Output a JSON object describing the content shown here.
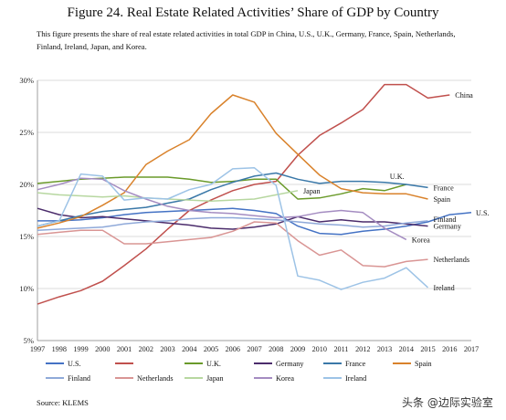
{
  "page": {
    "title": "Figure 24. Real Estate Related Activities’ Share of GDP by Country",
    "subtitle": "This figure presents the share of real estate related activities in total GDP in China, U.S., U.K., Germany, France, Spain, Netherlands, Finland, Ireland, Japan, and Korea.",
    "source": "Source: KLEMS",
    "watermark_text": "头条 @边际实验室"
  },
  "chart_data": {
    "type": "line",
    "title": "Figure 24. Real Estate Related Activities’ Share of GDP by Country",
    "xlabel": "",
    "ylabel": "",
    "x": [
      1997,
      1998,
      1999,
      2000,
      2001,
      2002,
      2003,
      2004,
      2005,
      2006,
      2007,
      2008,
      2009,
      2010,
      2011,
      2012,
      2013,
      2014,
      2015,
      2016,
      2017
    ],
    "y_ticks": [
      "5%",
      "10%",
      "15%",
      "20%",
      "25%",
      "30%"
    ],
    "ylim": [
      5,
      30
    ],
    "xlim": [
      1997,
      2017
    ],
    "grid": "horizontal",
    "legend_position": "bottom",
    "series": [
      {
        "name": "U.S.",
        "color": "#4472c4",
        "values": [
          16.5,
          16.5,
          16.6,
          16.8,
          17.1,
          17.3,
          17.4,
          17.5,
          17.6,
          17.7,
          17.5,
          17.2,
          16.0,
          15.3,
          15.2,
          15.5,
          15.7,
          16.0,
          16.4,
          17.1,
          17.3
        ]
      },
      {
        "name": "China",
        "color": "#c0504d",
        "label": "China",
        "values": [
          8.5,
          9.2,
          9.8,
          10.7,
          12.2,
          13.8,
          15.7,
          17.5,
          18.5,
          19.4,
          20.0,
          20.3,
          22.8,
          24.7,
          25.9,
          27.2,
          29.6,
          29.6,
          28.3,
          28.6,
          null
        ]
      },
      {
        "name": "U.K.",
        "color": "#6a9a2a",
        "label": "U.K.",
        "values": [
          20.1,
          20.3,
          20.5,
          20.6,
          20.7,
          20.7,
          20.7,
          20.5,
          20.2,
          20.3,
          20.5,
          20.5,
          18.6,
          18.7,
          19.1,
          19.6,
          19.4,
          20.0,
          null,
          null,
          null
        ]
      },
      {
        "name": "Germany",
        "color": "#4b2c6b",
        "label": "Germany",
        "values": [
          17.7,
          17.1,
          16.8,
          16.9,
          16.7,
          16.5,
          16.3,
          16.1,
          15.8,
          15.7,
          15.9,
          16.2,
          16.9,
          16.4,
          16.6,
          16.4,
          16.4,
          16.2,
          16.0,
          null,
          null
        ]
      },
      {
        "name": "France",
        "color": "#3a78a8",
        "label": "France",
        "values": [
          16.0,
          16.5,
          17.0,
          17.4,
          17.6,
          17.8,
          18.2,
          18.6,
          19.5,
          20.2,
          20.8,
          21.1,
          20.5,
          20.1,
          20.3,
          20.3,
          20.2,
          20.0,
          19.7,
          null,
          null
        ]
      },
      {
        "name": "Spain",
        "color": "#d9822b",
        "label": "Spain",
        "values": [
          15.8,
          16.3,
          16.9,
          18.0,
          19.2,
          21.9,
          23.2,
          24.3,
          26.8,
          28.6,
          27.9,
          24.9,
          22.9,
          20.9,
          19.6,
          19.2,
          19.1,
          19.1,
          18.6,
          null,
          null
        ]
      },
      {
        "name": "Finland",
        "color": "#8fa9d9",
        "label": "Finland",
        "values": [
          15.6,
          15.7,
          15.8,
          15.9,
          16.2,
          16.4,
          16.5,
          16.7,
          16.8,
          16.8,
          16.7,
          16.6,
          16.4,
          16.2,
          16.1,
          15.9,
          16.0,
          16.3,
          16.5,
          null,
          null
        ]
      },
      {
        "name": "Netherlands",
        "color": "#d99594",
        "label": "Netherlands",
        "values": [
          15.2,
          15.4,
          15.6,
          15.6,
          14.3,
          14.3,
          14.5,
          14.7,
          14.9,
          15.5,
          16.4,
          16.3,
          14.6,
          13.2,
          13.7,
          12.2,
          12.1,
          12.6,
          12.8,
          null,
          null
        ]
      },
      {
        "name": "Japan",
        "color": "#b7d7a0",
        "label": "Japan",
        "values": [
          19.2,
          19.0,
          18.9,
          18.8,
          18.9,
          18.7,
          18.6,
          18.5,
          18.4,
          18.5,
          18.6,
          19.0,
          19.4,
          null,
          null,
          null,
          null,
          null,
          null,
          null,
          null
        ]
      },
      {
        "name": "Korea",
        "color": "#a48cc1",
        "label": "Korea",
        "values": [
          19.5,
          20.0,
          20.6,
          20.5,
          19.4,
          18.6,
          17.9,
          17.5,
          17.3,
          17.2,
          17.0,
          16.8,
          16.9,
          17.3,
          17.5,
          17.3,
          15.8,
          14.7,
          null,
          null,
          null
        ]
      },
      {
        "name": "Ireland",
        "color": "#9dc3e6",
        "label": "Ireland",
        "values": [
          16.0,
          16.5,
          21.0,
          20.8,
          18.5,
          18.7,
          18.6,
          19.5,
          20.0,
          21.5,
          21.6,
          19.9,
          11.2,
          10.8,
          9.9,
          10.6,
          11.0,
          12.0,
          10.1,
          null,
          null
        ]
      }
    ]
  }
}
